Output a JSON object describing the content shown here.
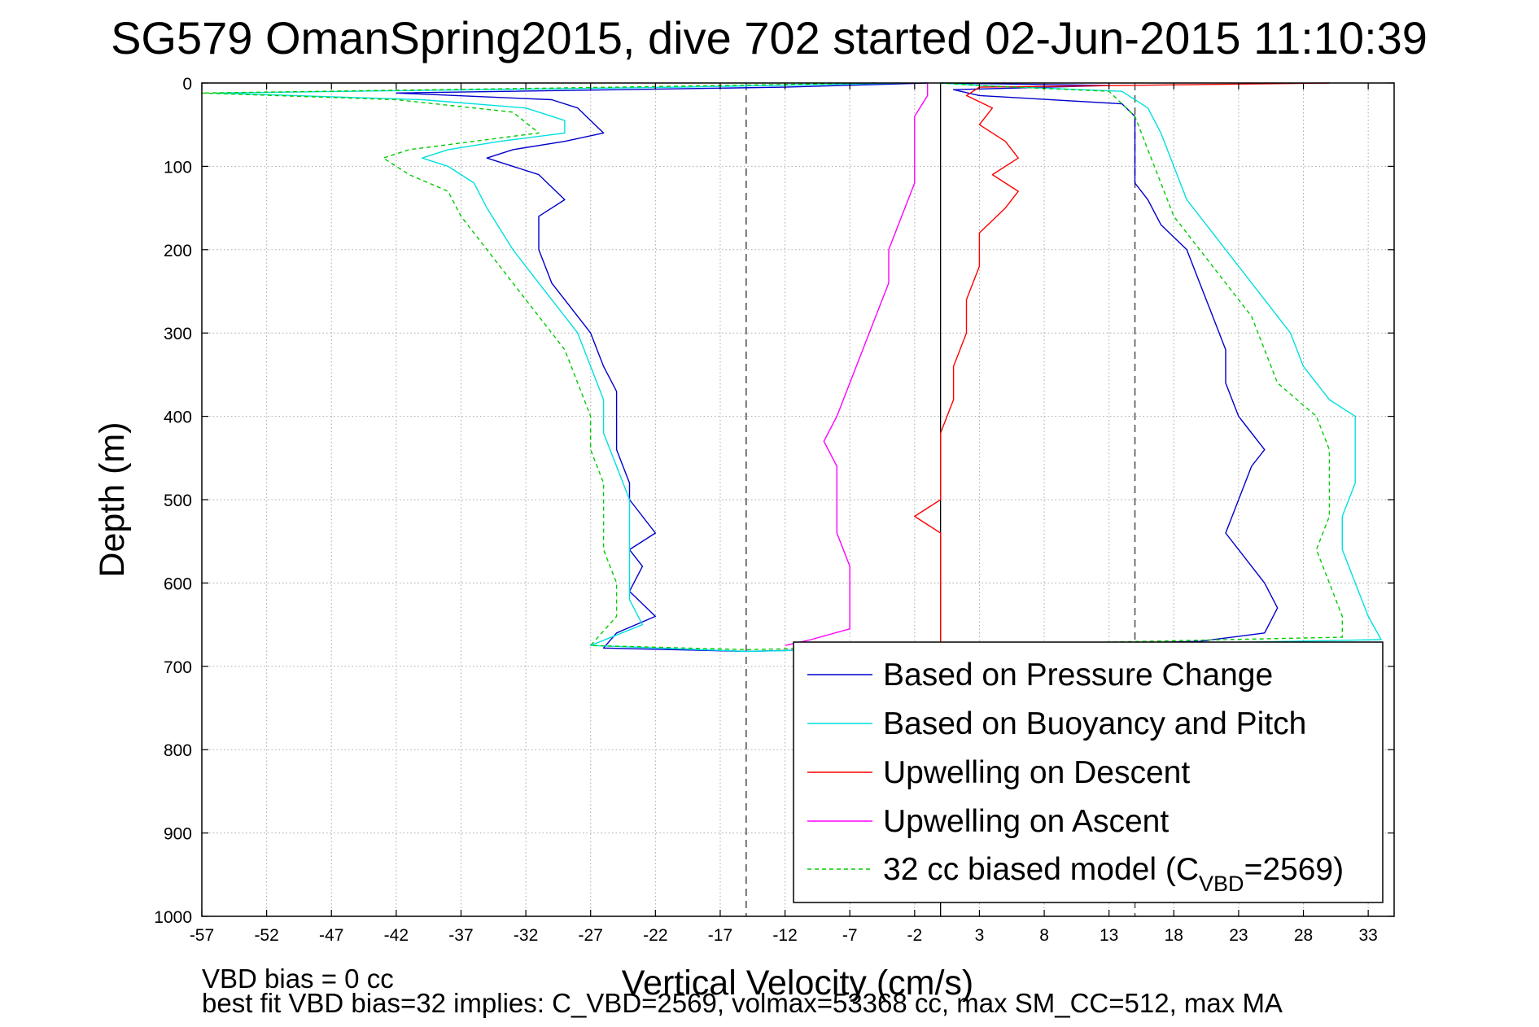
{
  "chart_data": {
    "type": "line",
    "title": "SG579 OmanSpring2015, dive 702 started 02-Jun-2015 11:10:39",
    "xlabel": "Vertical Velocity (cm/s)",
    "ylabel": "Depth (m)",
    "xlim": [
      -57,
      35
    ],
    "ylim": [
      0,
      1000
    ],
    "y_reversed": true,
    "grid": true,
    "x_ticks": [
      -57,
      -52,
      -47,
      -42,
      -37,
      -32,
      -27,
      -22,
      -17,
      -12,
      -7,
      -2,
      3,
      8,
      13,
      18,
      23,
      28,
      33
    ],
    "y_ticks": [
      0,
      100,
      200,
      300,
      400,
      500,
      600,
      700,
      800,
      900,
      1000
    ],
    "legend_position": "bottom-right",
    "vertical_lines": [
      {
        "x": -15,
        "style": "dashed",
        "color": "#555555"
      },
      {
        "x": 0,
        "style": "solid",
        "color": "#000000"
      },
      {
        "x": 15,
        "style": "dashed",
        "color": "#555555"
      }
    ],
    "series": [
      {
        "name": "Based on Pressure Change",
        "color": "#0000cc",
        "dash": "solid",
        "points": [
          {
            "depth": 0,
            "v": -1
          },
          {
            "depth": 5,
            "v": -12
          },
          {
            "depth": 12,
            "v": -42
          },
          {
            "depth": 20,
            "v": -30
          },
          {
            "depth": 30,
            "v": -28
          },
          {
            "depth": 45,
            "v": -27
          },
          {
            "depth": 60,
            "v": -26
          },
          {
            "depth": 70,
            "v": -29
          },
          {
            "depth": 80,
            "v": -33
          },
          {
            "depth": 90,
            "v": -35
          },
          {
            "depth": 100,
            "v": -33
          },
          {
            "depth": 110,
            "v": -31
          },
          {
            "depth": 125,
            "v": -30
          },
          {
            "depth": 140,
            "v": -29
          },
          {
            "depth": 160,
            "v": -31
          },
          {
            "depth": 200,
            "v": -31
          },
          {
            "depth": 240,
            "v": -30
          },
          {
            "depth": 280,
            "v": -28
          },
          {
            "depth": 300,
            "v": -27
          },
          {
            "depth": 340,
            "v": -26
          },
          {
            "depth": 370,
            "v": -25
          },
          {
            "depth": 400,
            "v": -25
          },
          {
            "depth": 440,
            "v": -25
          },
          {
            "depth": 480,
            "v": -24
          },
          {
            "depth": 500,
            "v": -24
          },
          {
            "depth": 520,
            "v": -23
          },
          {
            "depth": 540,
            "v": -22
          },
          {
            "depth": 560,
            "v": -24
          },
          {
            "depth": 580,
            "v": -23
          },
          {
            "depth": 610,
            "v": -24
          },
          {
            "depth": 640,
            "v": -22
          },
          {
            "depth": 660,
            "v": -25
          },
          {
            "depth": 678,
            "v": -26
          },
          {
            "depth": 682,
            "v": -15
          },
          {
            "depth": 670,
            "v": 20
          },
          {
            "depth": 660,
            "v": 25
          },
          {
            "depth": 630,
            "v": 26
          },
          {
            "depth": 600,
            "v": 25
          },
          {
            "depth": 560,
            "v": 23
          },
          {
            "depth": 540,
            "v": 22
          },
          {
            "depth": 500,
            "v": 23
          },
          {
            "depth": 460,
            "v": 24
          },
          {
            "depth": 440,
            "v": 25
          },
          {
            "depth": 400,
            "v": 23
          },
          {
            "depth": 360,
            "v": 22
          },
          {
            "depth": 320,
            "v": 22
          },
          {
            "depth": 280,
            "v": 21
          },
          {
            "depth": 240,
            "v": 20
          },
          {
            "depth": 200,
            "v": 19
          },
          {
            "depth": 170,
            "v": 17
          },
          {
            "depth": 140,
            "v": 16
          },
          {
            "depth": 120,
            "v": 15
          },
          {
            "depth": 100,
            "v": 15
          },
          {
            "depth": 80,
            "v": 15
          },
          {
            "depth": 60,
            "v": 15
          },
          {
            "depth": 40,
            "v": 15
          },
          {
            "depth": 25,
            "v": 14
          },
          {
            "depth": 15,
            "v": 3
          },
          {
            "depth": 8,
            "v": 1
          },
          {
            "depth": 3,
            "v": 13
          },
          {
            "depth": 0,
            "v": 0
          }
        ]
      },
      {
        "name": "Based on Buoyancy and Pitch",
        "color": "#00e0e0",
        "dash": "solid",
        "points": [
          {
            "depth": 0,
            "v": -3
          },
          {
            "depth": 5,
            "v": -20
          },
          {
            "depth": 12,
            "v": -56
          },
          {
            "depth": 20,
            "v": -40
          },
          {
            "depth": 30,
            "v": -32
          },
          {
            "depth": 45,
            "v": -29
          },
          {
            "depth": 60,
            "v": -29
          },
          {
            "depth": 70,
            "v": -34
          },
          {
            "depth": 80,
            "v": -38
          },
          {
            "depth": 90,
            "v": -40
          },
          {
            "depth": 100,
            "v": -38
          },
          {
            "depth": 120,
            "v": -36
          },
          {
            "depth": 150,
            "v": -35
          },
          {
            "depth": 200,
            "v": -33
          },
          {
            "depth": 240,
            "v": -31
          },
          {
            "depth": 280,
            "v": -29
          },
          {
            "depth": 300,
            "v": -28
          },
          {
            "depth": 340,
            "v": -27
          },
          {
            "depth": 380,
            "v": -26
          },
          {
            "depth": 420,
            "v": -26
          },
          {
            "depth": 460,
            "v": -25
          },
          {
            "depth": 500,
            "v": -24
          },
          {
            "depth": 540,
            "v": -24
          },
          {
            "depth": 580,
            "v": -24
          },
          {
            "depth": 620,
            "v": -24
          },
          {
            "depth": 650,
            "v": -23
          },
          {
            "depth": 675,
            "v": -27
          },
          {
            "depth": 682,
            "v": -15
          },
          {
            "depth": 668,
            "v": 34
          },
          {
            "depth": 640,
            "v": 33
          },
          {
            "depth": 600,
            "v": 32
          },
          {
            "depth": 560,
            "v": 31
          },
          {
            "depth": 520,
            "v": 31
          },
          {
            "depth": 480,
            "v": 32
          },
          {
            "depth": 440,
            "v": 32
          },
          {
            "depth": 400,
            "v": 32
          },
          {
            "depth": 380,
            "v": 30
          },
          {
            "depth": 340,
            "v": 28
          },
          {
            "depth": 300,
            "v": 27
          },
          {
            "depth": 260,
            "v": 25
          },
          {
            "depth": 220,
            "v": 23
          },
          {
            "depth": 180,
            "v": 21
          },
          {
            "depth": 140,
            "v": 19
          },
          {
            "depth": 100,
            "v": 18
          },
          {
            "depth": 60,
            "v": 17
          },
          {
            "depth": 30,
            "v": 16
          },
          {
            "depth": 10,
            "v": 14
          },
          {
            "depth": 3,
            "v": 3
          },
          {
            "depth": 0,
            "v": 0
          }
        ]
      },
      {
        "name": "Upwelling on Descent",
        "color": "#ff0000",
        "dash": "solid",
        "points": [
          {
            "depth": 0,
            "v": 30
          },
          {
            "depth": 5,
            "v": 3
          },
          {
            "depth": 15,
            "v": 2
          },
          {
            "depth": 30,
            "v": 4
          },
          {
            "depth": 50,
            "v": 3
          },
          {
            "depth": 70,
            "v": 5
          },
          {
            "depth": 90,
            "v": 6
          },
          {
            "depth": 110,
            "v": 4
          },
          {
            "depth": 130,
            "v": 6
          },
          {
            "depth": 150,
            "v": 5
          },
          {
            "depth": 180,
            "v": 3
          },
          {
            "depth": 220,
            "v": 3
          },
          {
            "depth": 260,
            "v": 2
          },
          {
            "depth": 300,
            "v": 2
          },
          {
            "depth": 340,
            "v": 1
          },
          {
            "depth": 380,
            "v": 1
          },
          {
            "depth": 420,
            "v": 0
          },
          {
            "depth": 460,
            "v": 0
          },
          {
            "depth": 500,
            "v": 0
          },
          {
            "depth": 520,
            "v": -2
          },
          {
            "depth": 540,
            "v": 0
          },
          {
            "depth": 580,
            "v": 0
          },
          {
            "depth": 620,
            "v": 0
          },
          {
            "depth": 660,
            "v": 0
          },
          {
            "depth": 675,
            "v": 0
          }
        ]
      },
      {
        "name": "Upwelling on Ascent",
        "color": "#ff00ff",
        "dash": "solid",
        "points": [
          {
            "depth": 675,
            "v": -12
          },
          {
            "depth": 668,
            "v": -10
          },
          {
            "depth": 655,
            "v": -7
          },
          {
            "depth": 620,
            "v": -7
          },
          {
            "depth": 580,
            "v": -7
          },
          {
            "depth": 540,
            "v": -8
          },
          {
            "depth": 500,
            "v": -8
          },
          {
            "depth": 460,
            "v": -8
          },
          {
            "depth": 430,
            "v": -9
          },
          {
            "depth": 400,
            "v": -8
          },
          {
            "depth": 360,
            "v": -7
          },
          {
            "depth": 320,
            "v": -6
          },
          {
            "depth": 280,
            "v": -5
          },
          {
            "depth": 240,
            "v": -4
          },
          {
            "depth": 200,
            "v": -4
          },
          {
            "depth": 160,
            "v": -3
          },
          {
            "depth": 120,
            "v": -2
          },
          {
            "depth": 80,
            "v": -2
          },
          {
            "depth": 40,
            "v": -2
          },
          {
            "depth": 15,
            "v": -1
          },
          {
            "depth": 5,
            "v": -1
          },
          {
            "depth": 0,
            "v": -1
          }
        ]
      },
      {
        "name": "32 cc biased model (C_VBD=2569)",
        "color": "#00cc00",
        "dash": "dashed",
        "points": [
          {
            "depth": 0,
            "v": -5
          },
          {
            "depth": 5,
            "v": -25
          },
          {
            "depth": 12,
            "v": -57
          },
          {
            "depth": 20,
            "v": -42
          },
          {
            "depth": 35,
            "v": -33
          },
          {
            "depth": 60,
            "v": -31
          },
          {
            "depth": 80,
            "v": -41
          },
          {
            "depth": 90,
            "v": -43
          },
          {
            "depth": 110,
            "v": -41
          },
          {
            "depth": 130,
            "v": -38
          },
          {
            "depth": 160,
            "v": -37
          },
          {
            "depth": 200,
            "v": -35
          },
          {
            "depth": 240,
            "v": -33
          },
          {
            "depth": 280,
            "v": -31
          },
          {
            "depth": 320,
            "v": -29
          },
          {
            "depth": 360,
            "v": -28
          },
          {
            "depth": 400,
            "v": -27
          },
          {
            "depth": 440,
            "v": -27
          },
          {
            "depth": 480,
            "v": -26
          },
          {
            "depth": 520,
            "v": -26
          },
          {
            "depth": 560,
            "v": -26
          },
          {
            "depth": 600,
            "v": -25
          },
          {
            "depth": 640,
            "v": -25
          },
          {
            "depth": 675,
            "v": -27
          },
          {
            "depth": 680,
            "v": -15
          },
          {
            "depth": 665,
            "v": 31
          },
          {
            "depth": 640,
            "v": 31
          },
          {
            "depth": 600,
            "v": 30
          },
          {
            "depth": 560,
            "v": 29
          },
          {
            "depth": 520,
            "v": 30
          },
          {
            "depth": 480,
            "v": 30
          },
          {
            "depth": 440,
            "v": 30
          },
          {
            "depth": 400,
            "v": 29
          },
          {
            "depth": 360,
            "v": 26
          },
          {
            "depth": 320,
            "v": 25
          },
          {
            "depth": 280,
            "v": 24
          },
          {
            "depth": 240,
            "v": 22
          },
          {
            "depth": 200,
            "v": 20
          },
          {
            "depth": 160,
            "v": 18
          },
          {
            "depth": 120,
            "v": 17
          },
          {
            "depth": 80,
            "v": 16
          },
          {
            "depth": 40,
            "v": 15
          },
          {
            "depth": 10,
            "v": 13
          },
          {
            "depth": 3,
            "v": 3
          },
          {
            "depth": 0,
            "v": 0
          }
        ]
      }
    ],
    "legend": [
      {
        "label": "Based on Pressure Change",
        "color": "#0000cc",
        "dash": "solid"
      },
      {
        "label": "Based on Buoyancy and Pitch",
        "color": "#00e0e0",
        "dash": "solid"
      },
      {
        "label": "Upwelling on Descent",
        "color": "#ff0000",
        "dash": "solid"
      },
      {
        "label": "Upwelling on Ascent",
        "color": "#ff00ff",
        "dash": "solid"
      },
      {
        "label_main": "32 cc biased model (C",
        "label_sub": "VBD",
        "label_end": "=2569)",
        "color": "#00cc00",
        "dash": "dashed"
      }
    ],
    "footer": {
      "line1": "VBD bias = 0 cc",
      "line2": "best fit VBD bias=32 implies: C_VBD=2569, volmax=53368 cc, max SM_CC=512, max MA"
    }
  }
}
